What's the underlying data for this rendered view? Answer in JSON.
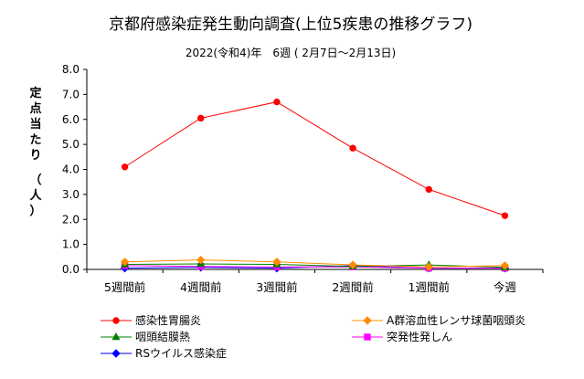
{
  "chart_data": {
    "type": "line",
    "title": "京都府感染症発生動向調査(上位5疾患の推移グラフ)",
    "subtitle": "2022(令和4)年　6週 ( 2月7日～2月13日)",
    "ylabel": "定点当たり　（人）",
    "xlabel": "",
    "categories": [
      "5週間前",
      "4週間前",
      "3週間前",
      "2週間前",
      "1週間前",
      "今週"
    ],
    "ylim": [
      0,
      8
    ],
    "yticks": [
      "0.0",
      "1.0",
      "2.0",
      "3.0",
      "4.0",
      "5.0",
      "6.0",
      "7.0",
      "8.0"
    ],
    "grid": false,
    "legend_position": "bottom",
    "series": [
      {
        "name": "感染性胃腸炎",
        "color": "#ff0000",
        "marker": "circle",
        "values": [
          4.1,
          6.05,
          6.7,
          4.85,
          3.2,
          2.15
        ]
      },
      {
        "name": "A群溶血性レンサ球菌咽頭炎",
        "color": "#ff8c00",
        "marker": "diamond",
        "values": [
          0.3,
          0.38,
          0.3,
          0.18,
          0.1,
          0.15
        ]
      },
      {
        "name": "咽頭結膜熱",
        "color": "#008000",
        "marker": "triangle",
        "values": [
          0.2,
          0.22,
          0.2,
          0.12,
          0.18,
          0.08
        ]
      },
      {
        "name": "突発性発しん",
        "color": "#ff00ff",
        "marker": "square",
        "values": [
          0.15,
          0.12,
          0.1,
          0.1,
          0.05,
          0.05
        ]
      },
      {
        "name": "RSウイルス感染症",
        "color": "#0000ff",
        "marker": "diamond",
        "values": [
          0.05,
          0.08,
          0.05,
          0.15,
          0.05,
          0.05
        ]
      }
    ]
  }
}
